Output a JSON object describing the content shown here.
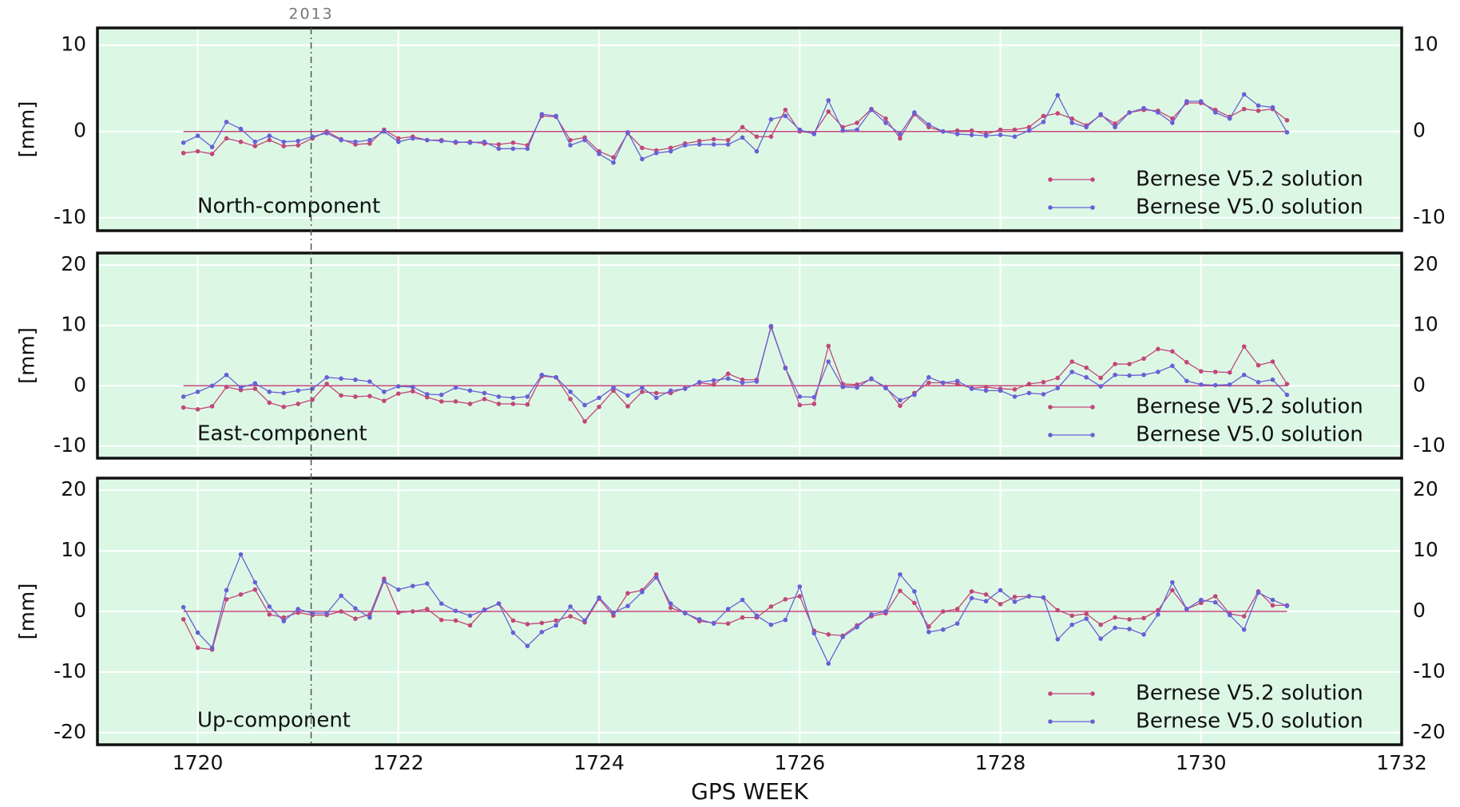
{
  "chart_data": [
    {
      "type": "line",
      "label": "North-component",
      "ylabel": "[mm]",
      "legend": "lower right",
      "grid": true,
      "marker": {
        "label": "2013",
        "x": 1721.13
      },
      "xlim": [
        1719,
        1732
      ],
      "ylim": [
        -11.5,
        12
      ],
      "yticks": [
        -10,
        0,
        10
      ],
      "x": [
        1719.857,
        1720,
        1720.143,
        1720.286,
        1720.429,
        1720.571,
        1720.714,
        1720.857,
        1721,
        1721.143,
        1721.286,
        1721.429,
        1721.571,
        1721.714,
        1721.857,
        1722,
        1722.143,
        1722.286,
        1722.429,
        1722.571,
        1722.714,
        1722.857,
        1723,
        1723.143,
        1723.286,
        1723.429,
        1723.571,
        1723.714,
        1723.857,
        1724,
        1724.143,
        1724.286,
        1724.429,
        1724.571,
        1724.714,
        1724.857,
        1725,
        1725.143,
        1725.286,
        1725.429,
        1725.571,
        1725.714,
        1725.857,
        1726,
        1726.143,
        1726.286,
        1726.429,
        1726.571,
        1726.714,
        1726.857,
        1727,
        1727.143,
        1727.286,
        1727.429,
        1727.571,
        1727.714,
        1727.857,
        1728,
        1728.143,
        1728.286,
        1728.429,
        1728.571,
        1728.714,
        1728.857,
        1729,
        1729.143,
        1729.286,
        1729.429,
        1729.571,
        1729.714,
        1729.857,
        1730,
        1730.143,
        1730.286,
        1730.429,
        1730.571,
        1730.714,
        1730.857
      ],
      "series": [
        {
          "name": "Bernese V5.2 solution",
          "color": "#c2477a",
          "values": [
            -2.5,
            -2.3,
            -2.6,
            -0.8,
            -1.2,
            -1.7,
            -1.0,
            -1.7,
            -1.6,
            -0.8,
            0,
            -0.9,
            -1.5,
            -1.4,
            0.2,
            -0.8,
            -0.6,
            -1.0,
            -1.0,
            -1.3,
            -1.2,
            -1.4,
            -1.5,
            -1.3,
            -1.6,
            1.8,
            1.7,
            -1.0,
            -0.7,
            -2.3,
            -3.0,
            -0.2,
            -1.9,
            -2.2,
            -1.9,
            -1.4,
            -1.1,
            -0.9,
            -1.0,
            0.5,
            -0.6,
            -0.6,
            2.5,
            0,
            -0.2,
            2.3,
            0.5,
            1.0,
            2.6,
            1.5,
            -0.8,
            2.0,
            0.5,
            0,
            0.1,
            0.1,
            -0.3,
            0.2,
            0.2,
            0.5,
            1.8,
            2.1,
            1.5,
            0.7,
            1.9,
            0.9,
            2.2,
            2.5,
            2.4,
            1.5,
            3.3,
            3.3,
            2.5,
            1.7,
            2.6,
            2.4,
            2.6,
            1.3
          ]
        },
        {
          "name": "Bernese V5.0 solution",
          "color": "#6a5fd6",
          "values": [
            -1.3,
            -0.5,
            -1.8,
            1.1,
            0.3,
            -1.2,
            -0.5,
            -1.2,
            -1.1,
            -0.6,
            -0.2,
            -1.0,
            -1.2,
            -1.0,
            0,
            -1.2,
            -0.8,
            -1.0,
            -1.1,
            -1.2,
            -1.3,
            -1.2,
            -2.0,
            -2.0,
            -2.0,
            2.0,
            1.8,
            -1.6,
            -1.0,
            -2.6,
            -3.6,
            -0.1,
            -3.2,
            -2.5,
            -2.3,
            -1.6,
            -1.5,
            -1.5,
            -1.5,
            -0.7,
            -2.3,
            1.4,
            1.8,
            0.2,
            -0.3,
            3.6,
            0.1,
            0.2,
            2.5,
            1.0,
            -0.3,
            2.2,
            0.8,
            0,
            -0.3,
            -0.4,
            -0.5,
            -0.4,
            -0.6,
            0.1,
            1.1,
            4.2,
            1.0,
            0.5,
            2.0,
            0.5,
            2.2,
            2.7,
            2.2,
            1.0,
            3.5,
            3.5,
            2.2,
            1.5,
            4.3,
            3.0,
            2.8,
            -0.1
          ]
        }
      ]
    },
    {
      "type": "line",
      "label": "East-component",
      "ylabel": "[mm]",
      "legend": "lower right",
      "grid": true,
      "xlim": [
        1719,
        1732
      ],
      "ylim": [
        -12,
        22
      ],
      "yticks": [
        -10,
        0,
        10,
        20
      ],
      "x": [
        1719.857,
        1720,
        1720.143,
        1720.286,
        1720.429,
        1720.571,
        1720.714,
        1720.857,
        1721,
        1721.143,
        1721.286,
        1721.429,
        1721.571,
        1721.714,
        1721.857,
        1722,
        1722.143,
        1722.286,
        1722.429,
        1722.571,
        1722.714,
        1722.857,
        1723,
        1723.143,
        1723.286,
        1723.429,
        1723.571,
        1723.714,
        1723.857,
        1724,
        1724.143,
        1724.286,
        1724.429,
        1724.571,
        1724.714,
        1724.857,
        1725,
        1725.143,
        1725.286,
        1725.429,
        1725.571,
        1725.714,
        1725.857,
        1726,
        1726.143,
        1726.286,
        1726.429,
        1726.571,
        1726.714,
        1726.857,
        1727,
        1727.143,
        1727.286,
        1727.429,
        1727.571,
        1727.714,
        1727.857,
        1728,
        1728.143,
        1728.286,
        1728.429,
        1728.571,
        1728.714,
        1728.857,
        1729,
        1729.143,
        1729.286,
        1729.429,
        1729.571,
        1729.714,
        1729.857,
        1730,
        1730.143,
        1730.286,
        1730.429,
        1730.571,
        1730.714,
        1730.857
      ],
      "series": [
        {
          "name": "Bernese V5.2 solution",
          "color": "#c2477a",
          "values": [
            -3.6,
            -3.9,
            -3.4,
            -0.2,
            -0.7,
            -0.5,
            -2.8,
            -3.5,
            -3.0,
            -2.3,
            0.3,
            -1.6,
            -1.8,
            -1.7,
            -2.5,
            -1.3,
            -0.9,
            -1.9,
            -2.6,
            -2.6,
            -3.0,
            -2.2,
            -3.0,
            -3.0,
            -3.1,
            1.6,
            1.4,
            -2.2,
            -5.9,
            -3.5,
            -0.8,
            -3.4,
            -1.0,
            -1.2,
            -1.2,
            -0.4,
            0.5,
            0.2,
            2.0,
            1.0,
            1.0,
            9.7,
            3.0,
            -3.2,
            -3.0,
            6.6,
            0.3,
            0.2,
            1.1,
            -0.2,
            -3.3,
            -1.2,
            0.5,
            0.5,
            0.3,
            -0.4,
            -0.2,
            -0.5,
            -0.6,
            0.3,
            0.6,
            1.3,
            4.0,
            3.0,
            1.3,
            3.6,
            3.6,
            4.5,
            6.1,
            5.7,
            3.9,
            2.4,
            2.3,
            2.2,
            6.5,
            3.4,
            4.0,
            0.3
          ]
        },
        {
          "name": "Bernese V5.0 solution",
          "color": "#6a5fd6",
          "values": [
            -1.8,
            -1.0,
            0,
            1.8,
            -0.3,
            0.4,
            -1.0,
            -1.2,
            -0.8,
            -0.5,
            1.4,
            1.2,
            1.0,
            0.7,
            -1.0,
            -0.1,
            -0.2,
            -1.4,
            -1.5,
            -0.3,
            -0.8,
            -1.2,
            -1.8,
            -2.0,
            -1.8,
            1.8,
            1.4,
            -1.0,
            -3.2,
            -2.0,
            -0.3,
            -1.6,
            -0.3,
            -2.0,
            -0.8,
            -0.5,
            0.6,
            0.9,
            1.2,
            0.5,
            0.7,
            9.9,
            2.9,
            -1.8,
            -1.9,
            4.0,
            -0.2,
            -0.3,
            1.2,
            -0.4,
            -2.4,
            -1.5,
            1.4,
            0.5,
            0.8,
            -0.5,
            -0.8,
            -0.8,
            -1.8,
            -1.2,
            -1.4,
            -0.4,
            2.3,
            1.4,
            -0.1,
            1.8,
            1.7,
            1.8,
            2.3,
            3.3,
            0.8,
            0.2,
            0.1,
            0.2,
            1.8,
            0.6,
            1.0,
            -1.5
          ]
        }
      ]
    },
    {
      "type": "line",
      "label": "Up-component",
      "ylabel": "[mm]",
      "xlabel": "GPS WEEK",
      "legend": "lower right",
      "grid": true,
      "xlim": [
        1719,
        1732
      ],
      "xticks": [
        1720,
        1722,
        1724,
        1726,
        1728,
        1730,
        1732
      ],
      "ylim": [
        -22,
        22
      ],
      "yticks": [
        -20,
        -10,
        0,
        10,
        20
      ],
      "x": [
        1719.857,
        1720,
        1720.143,
        1720.286,
        1720.429,
        1720.571,
        1720.714,
        1720.857,
        1721,
        1721.143,
        1721.286,
        1721.429,
        1721.571,
        1721.714,
        1721.857,
        1722,
        1722.143,
        1722.286,
        1722.429,
        1722.571,
        1722.714,
        1722.857,
        1723,
        1723.143,
        1723.286,
        1723.429,
        1723.571,
        1723.714,
        1723.857,
        1724,
        1724.143,
        1724.286,
        1724.429,
        1724.571,
        1724.714,
        1724.857,
        1725,
        1725.143,
        1725.286,
        1725.429,
        1725.571,
        1725.714,
        1725.857,
        1726,
        1726.143,
        1726.286,
        1726.429,
        1726.571,
        1726.714,
        1726.857,
        1727,
        1727.143,
        1727.286,
        1727.429,
        1727.571,
        1727.714,
        1727.857,
        1728,
        1728.143,
        1728.286,
        1728.429,
        1728.571,
        1728.714,
        1728.857,
        1729,
        1729.143,
        1729.286,
        1729.429,
        1729.571,
        1729.714,
        1729.857,
        1730,
        1730.143,
        1730.286,
        1730.429,
        1730.571,
        1730.714,
        1730.857
      ],
      "series": [
        {
          "name": "Bernese V5.2 solution",
          "color": "#c2477a",
          "values": [
            -1.3,
            -6.0,
            -6.3,
            2.0,
            2.8,
            3.6,
            -0.5,
            -1.0,
            -0.2,
            -0.6,
            -0.6,
            0,
            -1.2,
            -0.5,
            5.4,
            -0.2,
            0,
            0.4,
            -1.4,
            -1.5,
            -2.3,
            0.3,
            1.3,
            -1.5,
            -2.1,
            -1.9,
            -1.5,
            -0.8,
            -1.8,
            2.1,
            -0.7,
            3.0,
            3.5,
            6.1,
            0.6,
            -0.2,
            -1.6,
            -1.9,
            -2.0,
            -1.0,
            -1.0,
            0.8,
            2.0,
            2.5,
            -3.2,
            -3.8,
            -4.0,
            -2.3,
            -0.8,
            -0.3,
            3.4,
            1.4,
            -2.5,
            0,
            0.4,
            3.3,
            2.8,
            1.2,
            2.4,
            2.5,
            2.3,
            0.2,
            -0.7,
            -0.4,
            -2.2,
            -1.0,
            -1.3,
            -1.1,
            0.2,
            3.5,
            0.4,
            1.4,
            2.5,
            -0.4,
            -0.8,
            3.3,
            1.0,
            1.0
          ]
        },
        {
          "name": "Bernese V5.0 solution",
          "color": "#6a5fd6",
          "values": [
            0.7,
            -3.5,
            -6.0,
            3.5,
            9.4,
            4.8,
            0.8,
            -1.6,
            0.4,
            -0.3,
            -0.3,
            2.6,
            0.5,
            -1.0,
            5.0,
            3.6,
            4.2,
            4.6,
            1.3,
            0.1,
            -0.7,
            0.2,
            1.3,
            -3.5,
            -5.7,
            -3.4,
            -2.3,
            0.8,
            -1.5,
            2.3,
            -0.2,
            0.9,
            3.2,
            5.6,
            1.3,
            -0.3,
            -1.3,
            -2.0,
            0.4,
            1.9,
            -0.7,
            -2.2,
            -1.4,
            4.1,
            -3.6,
            -8.6,
            -4.2,
            -2.6,
            -0.5,
            0,
            6.1,
            3.3,
            -3.4,
            -3.0,
            -2.0,
            2.2,
            1.7,
            3.5,
            1.6,
            2.5,
            2.3,
            -4.6,
            -2.2,
            -1.2,
            -4.5,
            -2.7,
            -2.9,
            -3.8,
            -0.5,
            4.8,
            0.4,
            1.9,
            1.5,
            -0.6,
            -3.0,
            3.1,
            1.9,
            0.9
          ]
        }
      ]
    }
  ]
}
